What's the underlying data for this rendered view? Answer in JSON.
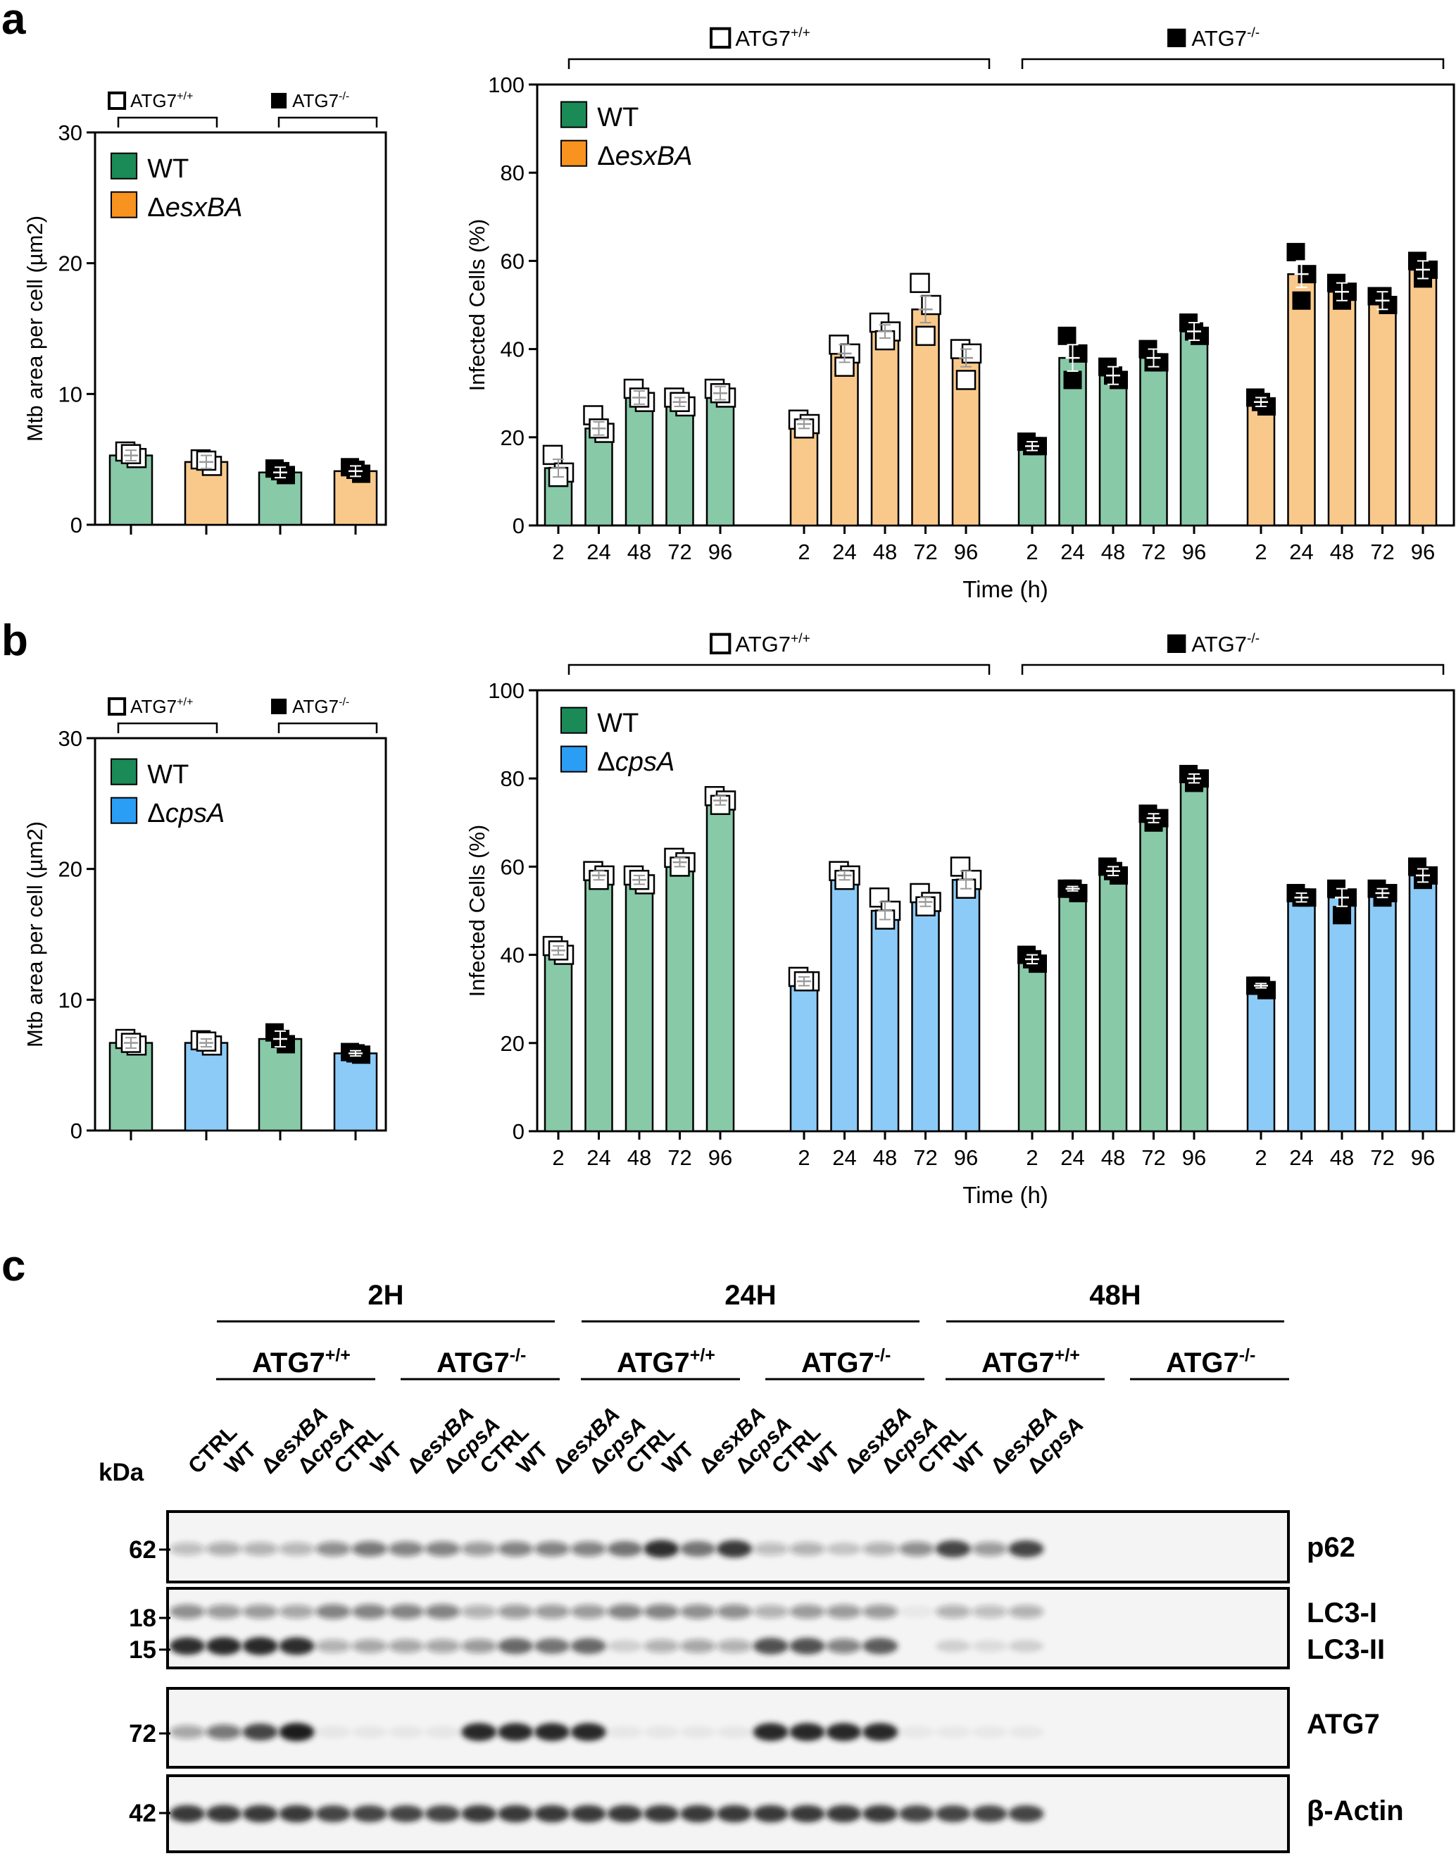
{
  "colors": {
    "wt_bar": "#88c9a8",
    "wt_legend": "#1a8a57",
    "esx_bar": "#f9c98c",
    "esx_legend": "#f7931e",
    "cps_bar": "#8ccbf7",
    "cps_legend": "#2a9df4",
    "band": "#1a1a1a"
  },
  "panel_letters": {
    "a": "a",
    "b": "b",
    "c": "c"
  },
  "genotype_labels": {
    "wt": "ATG7",
    "wt_sup": "+/+",
    "ko": "ATG7",
    "ko_sup": "-/-"
  },
  "chart_data": [
    {
      "id": "a-left",
      "type": "bar",
      "panel": "a",
      "title": "",
      "ylabel": "Mtb area per cell (µm2)",
      "xlabel": "",
      "ylim": [
        0,
        30
      ],
      "yticks": [
        0,
        10,
        20,
        30
      ],
      "legend": [
        {
          "name": "WT",
          "key": "wt"
        },
        {
          "name": "Δ",
          "italic": "esxBA",
          "key": "esx"
        }
      ],
      "bars": [
        {
          "genotype": "ATG7+/+",
          "strain": "WT",
          "key": "wt",
          "value": 5.3,
          "err": 0.4,
          "points": [
            5.6,
            5.1,
            5.4
          ]
        },
        {
          "genotype": "ATG7+/+",
          "strain": "ΔesxBA",
          "key": "esx",
          "value": 4.8,
          "err": 0.5,
          "points": [
            5.0,
            4.5,
            4.9
          ]
        },
        {
          "genotype": "ATG7-/-",
          "strain": "WT",
          "key": "wt",
          "value": 4.0,
          "err": 0.4,
          "points": [
            4.3,
            3.8,
            4.1
          ]
        },
        {
          "genotype": "ATG7-/-",
          "strain": "ΔesxBA",
          "key": "esx",
          "value": 4.1,
          "err": 0.4,
          "points": [
            4.4,
            3.9,
            4.2
          ]
        }
      ]
    },
    {
      "id": "a-right",
      "type": "bar",
      "panel": "a",
      "ylabel": "Infected Cells (%)",
      "xlabel": "Time (h)",
      "ylim": [
        0,
        100
      ],
      "yticks": [
        0,
        20,
        40,
        60,
        80,
        100
      ],
      "categories": [
        "2",
        "24",
        "48",
        "72",
        "96"
      ],
      "legend": [
        {
          "name": "WT",
          "key": "wt"
        },
        {
          "name": "Δ",
          "italic": "esxBA",
          "key": "esx"
        }
      ],
      "groups": [
        {
          "genotype": "ATG7+/+",
          "strain": "WT",
          "key": "wt",
          "values": [
            13,
            22,
            29,
            28,
            30
          ],
          "err": [
            2,
            1.5,
            1.5,
            1,
            1.5
          ],
          "points": [
            [
              16,
              12,
              11
            ],
            [
              25,
              21,
              22
            ],
            [
              31,
              28,
              29
            ],
            [
              29,
              27,
              28
            ],
            [
              31,
              29,
              30
            ]
          ]
        },
        {
          "genotype": "ATG7+/+",
          "strain": "ΔesxBA",
          "key": "esx",
          "values": [
            23,
            39,
            44,
            49,
            38
          ],
          "err": [
            1,
            2,
            1.5,
            3,
            2
          ],
          "points": [
            [
              24,
              23,
              22
            ],
            [
              41,
              39,
              36
            ],
            [
              46,
              44,
              42
            ],
            [
              55,
              50,
              43
            ],
            [
              40,
              39,
              33
            ]
          ]
        },
        {
          "genotype": "ATG7-/-",
          "strain": "WT",
          "key": "wt",
          "values": [
            18,
            38,
            34,
            38,
            44
          ],
          "err": [
            1,
            3,
            2,
            2,
            2
          ],
          "points": [
            [
              19,
              18,
              18
            ],
            [
              43,
              39,
              33
            ],
            [
              36,
              33,
              34
            ],
            [
              40,
              37,
              37
            ],
            [
              46,
              43,
              44
            ]
          ]
        },
        {
          "genotype": "ATG7-/-",
          "strain": "ΔesxBA",
          "key": "esx",
          "values": [
            28,
            57,
            53,
            51,
            58
          ],
          "err": [
            1,
            3,
            2,
            2,
            2
          ],
          "points": [
            [
              29,
              27,
              28
            ],
            [
              62,
              57,
              51
            ],
            [
              55,
              53,
              51
            ],
            [
              52,
              50,
              52
            ],
            [
              60,
              58,
              56
            ]
          ]
        }
      ]
    },
    {
      "id": "b-left",
      "type": "bar",
      "panel": "b",
      "ylabel": "Mtb area per cell (µm2)",
      "xlabel": "",
      "ylim": [
        0,
        30
      ],
      "yticks": [
        0,
        10,
        20,
        30
      ],
      "legend": [
        {
          "name": "WT",
          "key": "wt"
        },
        {
          "name": "Δ",
          "italic": "cpsA",
          "key": "cps"
        }
      ],
      "bars": [
        {
          "genotype": "ATG7+/+",
          "strain": "WT",
          "key": "wt",
          "value": 6.7,
          "err": 0.4,
          "points": [
            7.0,
            6.5,
            6.7
          ]
        },
        {
          "genotype": "ATG7+/+",
          "strain": "ΔcpsA",
          "key": "cps",
          "value": 6.7,
          "err": 0.3,
          "points": [
            6.9,
            6.5,
            6.8
          ]
        },
        {
          "genotype": "ATG7-/-",
          "strain": "WT",
          "key": "wt",
          "value": 7.0,
          "err": 0.6,
          "points": [
            7.5,
            6.6,
            7.0
          ]
        },
        {
          "genotype": "ATG7-/-",
          "strain": "ΔcpsA",
          "key": "cps",
          "value": 5.9,
          "err": 0.2,
          "points": [
            6.0,
            5.8,
            5.9
          ]
        }
      ]
    },
    {
      "id": "b-right",
      "type": "bar",
      "panel": "b",
      "ylabel": "Infected Cells (%)",
      "xlabel": "Time (h)",
      "ylim": [
        0,
        100
      ],
      "yticks": [
        0,
        20,
        40,
        60,
        80,
        100
      ],
      "categories": [
        "2",
        "24",
        "48",
        "72",
        "96"
      ],
      "legend": [
        {
          "name": "WT",
          "key": "wt"
        },
        {
          "name": "Δ",
          "italic": "cpsA",
          "key": "cps"
        }
      ],
      "groups": [
        {
          "genotype": "ATG7+/+",
          "strain": "WT",
          "key": "wt",
          "values": [
            41,
            58,
            57,
            61,
            75
          ],
          "err": [
            1,
            1,
            1,
            1,
            1
          ],
          "points": [
            [
              42,
              40,
              41
            ],
            [
              59,
              58,
              57
            ],
            [
              58,
              56,
              57
            ],
            [
              62,
              61,
              60
            ],
            [
              76,
              75,
              74
            ]
          ]
        },
        {
          "genotype": "ATG7+/+",
          "strain": "ΔcpsA",
          "key": "cps",
          "values": [
            34,
            58,
            50,
            52,
            57
          ],
          "err": [
            1,
            1,
            2,
            1,
            2
          ],
          "points": [
            [
              35,
              34,
              34
            ],
            [
              59,
              58,
              57
            ],
            [
              53,
              50,
              48
            ],
            [
              54,
              52,
              51
            ],
            [
              60,
              57,
              55
            ]
          ]
        },
        {
          "genotype": "ATG7-/-",
          "strain": "WT",
          "key": "wt",
          "values": [
            39,
            55,
            59,
            71,
            80
          ],
          "err": [
            1,
            0.5,
            1,
            1,
            1
          ],
          "points": [
            [
              40,
              38,
              39
            ],
            [
              55,
              54,
              55
            ],
            [
              60,
              58,
              59
            ],
            [
              72,
              71,
              70
            ],
            [
              81,
              80,
              79
            ]
          ]
        },
        {
          "genotype": "ATG7-/-",
          "strain": "ΔcpsA",
          "key": "cps",
          "values": [
            33,
            53,
            53,
            54,
            58
          ],
          "err": [
            0.5,
            1,
            2,
            1,
            1.5
          ],
          "points": [
            [
              33,
              32,
              33
            ],
            [
              54,
              53,
              53
            ],
            [
              55,
              53,
              49
            ],
            [
              55,
              54,
              53
            ],
            [
              60,
              58,
              57
            ]
          ]
        }
      ]
    }
  ],
  "blot": {
    "time_labels": [
      "2H",
      "24H",
      "48H"
    ],
    "genotypes": [
      "ATG7+/+",
      "ATG7-/-"
    ],
    "lane_labels": [
      "CTRL",
      "WT",
      "ΔesxBA",
      "ΔcpsA"
    ],
    "kda_header": "kDa",
    "markers": [
      "62",
      "18",
      "15",
      "72",
      "42"
    ],
    "rows": [
      {
        "label": "p62",
        "intensity": [
          0.25,
          0.32,
          0.3,
          0.28,
          0.45,
          0.55,
          0.5,
          0.5,
          0.4,
          0.5,
          0.5,
          0.5,
          0.6,
          0.9,
          0.6,
          0.85,
          0.25,
          0.3,
          0.2,
          0.3,
          0.45,
          0.8,
          0.4,
          0.8
        ]
      },
      {
        "label": "LC3-I",
        "intensity": [
          0.45,
          0.4,
          0.4,
          0.35,
          0.5,
          0.5,
          0.5,
          0.5,
          0.3,
          0.4,
          0.4,
          0.4,
          0.5,
          0.5,
          0.45,
          0.45,
          0.3,
          0.4,
          0.4,
          0.4,
          0.05,
          0.3,
          0.25,
          0.3
        ]
      },
      {
        "label": "LC3-II",
        "intensity": [
          0.9,
          0.95,
          0.95,
          0.9,
          0.3,
          0.35,
          0.35,
          0.35,
          0.4,
          0.65,
          0.6,
          0.65,
          0.15,
          0.3,
          0.35,
          0.3,
          0.75,
          0.75,
          0.5,
          0.7,
          0.0,
          0.15,
          0.1,
          0.15
        ]
      },
      {
        "label": "ATG7",
        "intensity": [
          0.35,
          0.55,
          0.8,
          1.0,
          0.06,
          0.06,
          0.06,
          0.06,
          0.95,
          0.95,
          0.95,
          0.95,
          0.06,
          0.06,
          0.06,
          0.06,
          0.95,
          0.95,
          0.95,
          0.95,
          0.05,
          0.05,
          0.05,
          0.05
        ]
      },
      {
        "label": "β-Actin",
        "intensity": [
          0.85,
          0.85,
          0.85,
          0.85,
          0.8,
          0.8,
          0.8,
          0.8,
          0.85,
          0.85,
          0.85,
          0.85,
          0.85,
          0.85,
          0.85,
          0.85,
          0.85,
          0.85,
          0.85,
          0.85,
          0.8,
          0.8,
          0.8,
          0.8
        ]
      }
    ]
  }
}
